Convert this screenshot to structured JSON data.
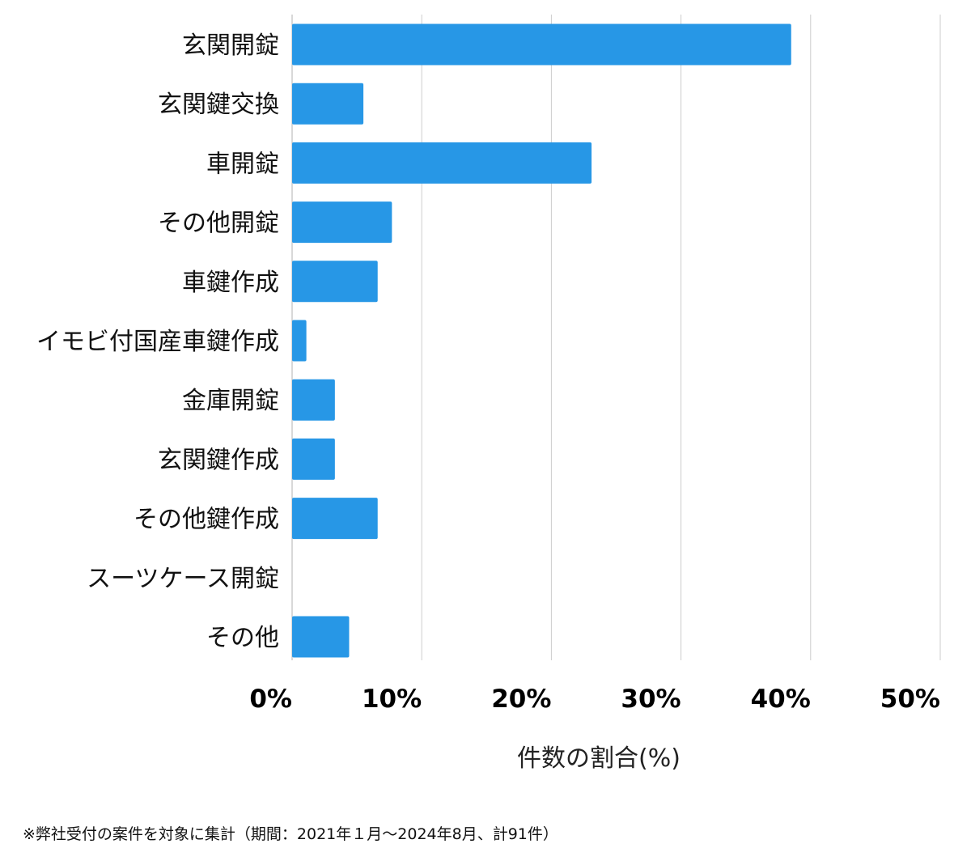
{
  "chart_data": {
    "type": "bar",
    "orientation": "horizontal",
    "categories": [
      "玄関開錠",
      "玄関鍵交換",
      "車開錠",
      "その他開錠",
      "車鍵作成",
      "イモビ付国産車鍵作成",
      "金庫開錠",
      "玄関鍵作成",
      "その他鍵作成",
      "スーツケース開錠",
      "その他"
    ],
    "values": [
      38.5,
      5.5,
      23.1,
      7.7,
      6.6,
      1.1,
      3.3,
      3.3,
      6.6,
      0,
      4.4
    ],
    "xlim": [
      0,
      50
    ],
    "xticks": [
      0,
      10,
      20,
      30,
      40,
      50
    ],
    "xtick_labels": [
      "0%",
      "10%",
      "20%",
      "30%",
      "40%",
      "50%"
    ],
    "xlabel": "件数の割合(%)",
    "ylabel": "",
    "title": "",
    "grid": true,
    "bar_color": "#2797E6",
    "grid_color": "#CCCCCC"
  },
  "footnote": "※弊社受付の案件を対象に集計（期間：2021年１月～2024年8月、計91件）"
}
